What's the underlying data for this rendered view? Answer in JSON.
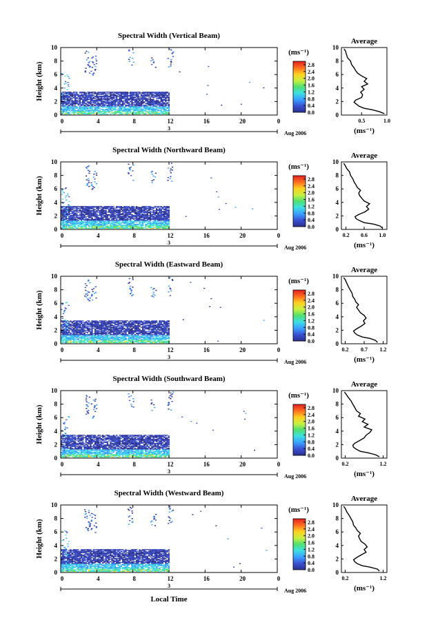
{
  "chart_data": [
    {
      "type": "heatmap",
      "title": "Spectral Width (Vertical Beam)",
      "ylabel": "Height (km)",
      "x_ticks": [
        "0",
        "4",
        "8",
        "12",
        "16",
        "20",
        "0"
      ],
      "y_ticks": [
        "0",
        "2",
        "4",
        "6",
        "8",
        "10"
      ],
      "xlim": [
        0,
        24
      ],
      "ylim": [
        0,
        10
      ],
      "date_label": "Aug 2006",
      "day_label": "3",
      "colorbar": {
        "unit": "(ms⁻¹)",
        "ticks": [
          "0.0",
          "0.4",
          "0.8",
          "1.2",
          "1.6",
          "2.0",
          "2.4",
          "2.8"
        ],
        "range": [
          0,
          3.0
        ]
      },
      "profile": {
        "title": "Average",
        "xlabel": "(ms⁻¹)",
        "x_ticks": [
          "0.5",
          "1.0"
        ],
        "xlim": [
          0.1,
          1.0
        ],
        "heights": [
          0.2,
          0.5,
          0.8,
          1.0,
          1.3,
          1.6,
          1.9,
          2.2,
          2.6,
          3.0,
          3.4,
          3.8,
          4.2,
          4.6,
          5.0,
          5.4,
          5.8,
          6.2,
          6.6,
          7.0,
          7.5,
          8.0,
          8.5,
          9.0,
          9.5,
          9.8
        ],
        "values": [
          0.95,
          0.85,
          0.7,
          0.55,
          0.45,
          0.4,
          0.35,
          0.38,
          0.5,
          0.52,
          0.48,
          0.55,
          0.5,
          0.62,
          0.55,
          0.6,
          0.5,
          0.42,
          0.38,
          0.35,
          0.3,
          0.28,
          0.22,
          0.2,
          0.18,
          0.15
        ]
      }
    },
    {
      "type": "heatmap",
      "title": "Spectral Width (Northward Beam)",
      "ylabel": "Height (km)",
      "x_ticks": [
        "0",
        "4",
        "8",
        "12",
        "16",
        "20",
        "0"
      ],
      "y_ticks": [
        "0",
        "2",
        "4",
        "6",
        "8",
        "10"
      ],
      "xlim": [
        0,
        24
      ],
      "ylim": [
        0,
        10
      ],
      "date_label": "Aug 2006",
      "day_label": "3",
      "colorbar": {
        "unit": "(ms⁻¹)",
        "ticks": [
          "0.0",
          "0.4",
          "0.8",
          "1.2",
          "1.6",
          "2.0",
          "2.4",
          "2.8"
        ],
        "range": [
          0,
          3.0
        ]
      },
      "profile": {
        "title": "Average",
        "xlabel": "(ms⁻¹)",
        "x_ticks": [
          "0.2",
          "0.6",
          "1.0"
        ],
        "xlim": [
          0.1,
          1.1
        ],
        "heights": [
          0.2,
          0.5,
          0.8,
          1.0,
          1.3,
          1.6,
          1.9,
          2.2,
          2.6,
          3.0,
          3.4,
          3.8,
          4.2,
          4.6,
          5.0,
          5.4,
          5.8,
          6.2,
          6.6,
          7.0,
          7.5,
          8.0,
          8.5,
          9.0,
          9.5,
          9.8
        ],
        "values": [
          1.0,
          0.95,
          0.8,
          0.6,
          0.5,
          0.42,
          0.4,
          0.48,
          0.62,
          0.7,
          0.65,
          0.72,
          0.6,
          0.55,
          0.5,
          0.48,
          0.52,
          0.45,
          0.42,
          0.38,
          0.35,
          0.3,
          0.28,
          0.22,
          0.18,
          0.15
        ]
      }
    },
    {
      "type": "heatmap",
      "title": "Spectral Width (Eastward Beam)",
      "ylabel": "Height (km)",
      "x_ticks": [
        "0",
        "4",
        "8",
        "12",
        "16",
        "20",
        "0"
      ],
      "y_ticks": [
        "0",
        "2",
        "4",
        "6",
        "8",
        "10"
      ],
      "xlim": [
        0,
        24
      ],
      "ylim": [
        0,
        10
      ],
      "date_label": "Aug 2006",
      "day_label": "3",
      "colorbar": {
        "unit": "(ms⁻¹)",
        "ticks": [
          "0.0",
          "0.4",
          "0.8",
          "1.2",
          "1.6",
          "2.0",
          "2.4",
          "2.8"
        ],
        "range": [
          0,
          3.0
        ]
      },
      "profile": {
        "title": "Average",
        "xlabel": "(ms⁻¹)",
        "x_ticks": [
          "0.2",
          "0.7",
          "1.2"
        ],
        "xlim": [
          0.1,
          1.3
        ],
        "heights": [
          0.2,
          0.5,
          0.8,
          1.0,
          1.3,
          1.6,
          1.9,
          2.2,
          2.6,
          3.0,
          3.4,
          3.8,
          4.2,
          4.6,
          5.0,
          5.4,
          5.8,
          6.2,
          6.6,
          7.0,
          7.5,
          8.0,
          8.5,
          9.0,
          9.5,
          9.8
        ],
        "values": [
          1.05,
          1.0,
          0.85,
          0.65,
          0.52,
          0.45,
          0.42,
          0.5,
          0.62,
          0.72,
          0.68,
          0.75,
          0.7,
          0.6,
          0.55,
          0.5,
          0.55,
          0.48,
          0.45,
          0.4,
          0.38,
          0.33,
          0.28,
          0.24,
          0.2,
          0.16
        ]
      }
    },
    {
      "type": "heatmap",
      "title": "Spectral Width (Southward Beam)",
      "ylabel": "Height (km)",
      "x_ticks": [
        "0",
        "4",
        "8",
        "12",
        "16",
        "20",
        "0"
      ],
      "y_ticks": [
        "0",
        "2",
        "4",
        "6",
        "8",
        "10"
      ],
      "xlim": [
        0,
        24
      ],
      "ylim": [
        0,
        10
      ],
      "date_label": "Aug 2006",
      "day_label": "3",
      "colorbar": {
        "unit": "(ms⁻¹)",
        "ticks": [
          "0.0",
          "0.4",
          "0.8",
          "1.2",
          "1.6",
          "2.0",
          "2.4",
          "2.8"
        ],
        "range": [
          0,
          3.0
        ]
      },
      "profile": {
        "title": "Average",
        "xlabel": "(ms⁻¹)",
        "x_ticks": [
          "0.2",
          "1.2"
        ],
        "xlim": [
          0.1,
          1.3
        ],
        "heights": [
          0.2,
          0.5,
          0.8,
          1.0,
          1.3,
          1.6,
          1.9,
          2.2,
          2.6,
          3.0,
          3.4,
          3.8,
          4.2,
          4.6,
          5.0,
          5.4,
          5.8,
          6.2,
          6.6,
          7.0,
          7.5,
          8.0,
          8.5,
          9.0,
          9.5,
          9.8
        ],
        "values": [
          1.1,
          1.0,
          0.8,
          0.6,
          0.5,
          0.42,
          0.4,
          0.45,
          0.58,
          0.7,
          0.75,
          0.85,
          0.9,
          0.7,
          0.8,
          0.65,
          0.72,
          0.55,
          0.6,
          0.5,
          0.45,
          0.4,
          0.35,
          0.28,
          0.22,
          0.18
        ]
      }
    },
    {
      "type": "heatmap",
      "title": "Spectral Width (Westward Beam)",
      "ylabel": "Height (km)",
      "xlabel": "Local Time",
      "x_ticks": [
        "0",
        "4",
        "8",
        "12",
        "16",
        "20",
        "0"
      ],
      "y_ticks": [
        "0",
        "2",
        "4",
        "6",
        "8",
        "10"
      ],
      "xlim": [
        0,
        24
      ],
      "ylim": [
        0,
        10
      ],
      "date_label": "Aug 2006",
      "day_label": "3",
      "colorbar": {
        "unit": "(ms⁻¹)",
        "ticks": [
          "0.0",
          "0.4",
          "0.8",
          "1.2",
          "1.6",
          "2.0",
          "2.4",
          "2.8"
        ],
        "range": [
          0,
          3.0
        ]
      },
      "profile": {
        "title": "Average",
        "xlabel": "(ms⁻¹)",
        "x_ticks": [
          "0.2",
          "1.2"
        ],
        "xlim": [
          0.1,
          1.3
        ],
        "heights": [
          0.2,
          0.5,
          0.8,
          1.0,
          1.3,
          1.6,
          1.9,
          2.2,
          2.6,
          3.0,
          3.4,
          3.8,
          4.2,
          4.6,
          5.0,
          5.4,
          5.8,
          6.2,
          6.6,
          7.0,
          7.5,
          8.0,
          8.5,
          9.0,
          9.5,
          9.8
        ],
        "values": [
          1.1,
          1.05,
          0.85,
          0.65,
          0.52,
          0.45,
          0.42,
          0.5,
          0.62,
          0.75,
          0.7,
          0.78,
          0.72,
          0.62,
          0.58,
          0.55,
          0.6,
          0.52,
          0.48,
          0.42,
          0.4,
          0.35,
          0.3,
          0.24,
          0.2,
          0.16
        ]
      }
    }
  ]
}
